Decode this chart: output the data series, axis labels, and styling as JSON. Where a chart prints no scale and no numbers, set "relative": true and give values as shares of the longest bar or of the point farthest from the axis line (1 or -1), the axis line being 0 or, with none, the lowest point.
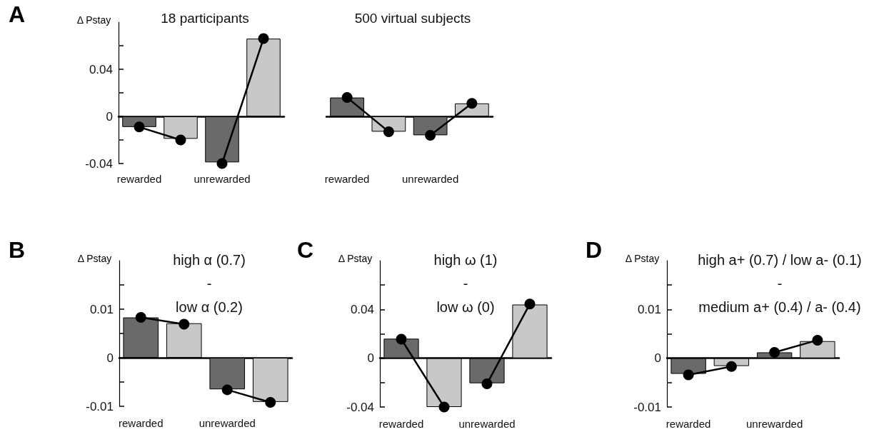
{
  "chart_data": [
    {
      "type": "bar",
      "title": "18 participants",
      "ylabel": "Δ Pstay",
      "annotations": [
        "A"
      ],
      "categories": [
        "rewarded",
        null,
        "unrewarded",
        null
      ],
      "marker": "circle",
      "series": [
        {
          "colors": [
            "#6a6a6a",
            "#c8c8c8",
            "#6a6a6a",
            "#c8c8c8"
          ],
          "values": [
            -0.009,
            -0.019,
            -0.039,
            0.066
          ]
        },
        {
          "type": "line",
          "color": "#000000",
          "values": [
            -0.009,
            -0.02,
            null,
            null
          ]
        },
        {
          "type": "line",
          "color": "#000000",
          "values": [
            null,
            null,
            -0.04,
            0.066
          ]
        }
      ],
      "ylim": [
        -0.04,
        0.08
      ],
      "yticks": [
        -0.04,
        {
          "value": -0.02,
          "label": null
        },
        0,
        {
          "value": 0.02,
          "label": null
        },
        0.04,
        {
          "value": 0.06,
          "label": null
        }
      ]
    },
    {
      "type": "bar",
      "title": "500 virtual subjects",
      "categories": [
        "rewarded",
        null,
        "unrewarded",
        null
      ],
      "marker": "circle",
      "relative": true,
      "series": [
        {
          "colors": [
            "#6a6a6a",
            "#c8c8c8",
            "#6a6a6a",
            "#c8c8c8"
          ],
          "values": [
            1,
            -0.81,
            -1,
            0.69
          ]
        },
        {
          "type": "line",
          "color": "#000000",
          "values": [
            1,
            -0.81,
            null,
            null
          ]
        },
        {
          "type": "line",
          "color": "#000000",
          "values": [
            null,
            null,
            -1,
            0.69
          ]
        }
      ]
    },
    {
      "type": "bar",
      "title": "high α (0.7)\n-\nlow α (0.2)",
      "ylabel": "Δ Pstay",
      "annotations": [
        "B"
      ],
      "categories": [
        "rewarded",
        null,
        "unrewarded",
        null
      ],
      "marker": "circle",
      "series": [
        {
          "colors": [
            "#6a6a6a",
            "#c8c8c8",
            "#6a6a6a",
            "#c8c8c8"
          ],
          "values": [
            0.0083,
            0.0071,
            -0.0065,
            -0.0091
          ]
        },
        {
          "type": "line",
          "color": "#000000",
          "values": [
            0.0083,
            0.0069,
            null,
            null
          ]
        },
        {
          "type": "line",
          "color": "#000000",
          "values": [
            null,
            null,
            -0.0066,
            -0.0092
          ]
        }
      ],
      "ylim": [
        -0.01,
        0.02
      ],
      "yticks": [
        -0.01,
        {
          "value": -0.005,
          "label": null
        },
        0,
        {
          "value": 0.005,
          "label": null
        },
        0.01,
        {
          "value": 0.015,
          "label": null
        }
      ]
    },
    {
      "type": "bar",
      "title": "high ω (1)\n-\nlow ω (0)",
      "ylabel": "Δ Pstay",
      "annotations": [
        "C"
      ],
      "categories": [
        "rewarded",
        null,
        "unrewarded",
        null
      ],
      "marker": "circle",
      "series": [
        {
          "colors": [
            "#6a6a6a",
            "#c8c8c8",
            "#6a6a6a",
            "#c8c8c8"
          ],
          "values": [
            0.016,
            -0.04,
            -0.0205,
            0.044
          ]
        },
        {
          "type": "line",
          "color": "#000000",
          "values": [
            0.0156,
            -0.04,
            null,
            null
          ]
        },
        {
          "type": "line",
          "color": "#000000",
          "values": [
            null,
            null,
            -0.021,
            0.0445
          ]
        }
      ],
      "ylim": [
        -0.04,
        0.08
      ],
      "yticks": [
        -0.04,
        {
          "value": -0.02,
          "label": null
        },
        0,
        {
          "value": 0.02,
          "label": null
        },
        0.04,
        {
          "value": 0.06,
          "label": null
        }
      ]
    },
    {
      "type": "bar",
      "title": "high a+ (0.7) / low a- (0.1)\n-\nmedium a+ (0.4) / a- (0.4)",
      "ylabel": "Δ Pstay",
      "annotations": [
        "D"
      ],
      "categories": [
        "rewarded",
        null,
        "unrewarded",
        null
      ],
      "marker": "circle",
      "series": [
        {
          "colors": [
            "#6a6a6a",
            "#c8c8c8",
            "#6a6a6a",
            "#c8c8c8"
          ],
          "values": [
            -0.0032,
            -0.0016,
            0.0012,
            0.0035
          ]
        },
        {
          "type": "line",
          "color": "#000000",
          "values": [
            -0.0034,
            -0.0017,
            null,
            null
          ]
        },
        {
          "type": "line",
          "color": "#000000",
          "values": [
            null,
            null,
            0.0012,
            0.0037
          ]
        }
      ],
      "ylim": [
        -0.01,
        0.02
      ],
      "yticks": [
        -0.01,
        {
          "value": -0.005,
          "label": null
        },
        0,
        {
          "value": 0.005,
          "label": null
        },
        0.01,
        {
          "value": 0.015,
          "label": null
        }
      ]
    }
  ]
}
